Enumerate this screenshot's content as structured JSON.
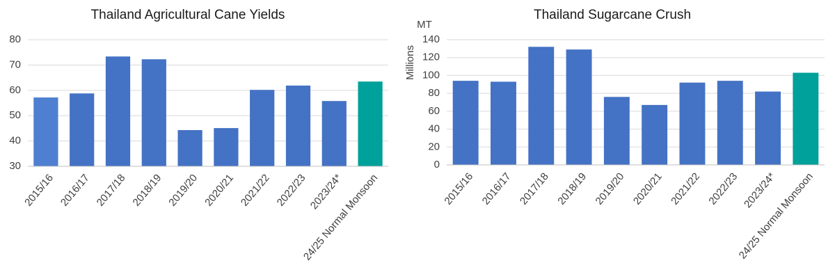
{
  "chart_data": [
    {
      "type": "bar",
      "title": "Thailand Agricultural Cane Yields",
      "categories": [
        "2015/16",
        "2016/17",
        "2017/18",
        "2018/19",
        "2019/20",
        "2020/21",
        "2021/22",
        "2022/23",
        "2023/24*",
        "24/25 Normal Monsoon"
      ],
      "values": [
        57.2,
        58.8,
        73.4,
        72.3,
        44.3,
        45.1,
        60.2,
        61.9,
        55.8,
        63.5
      ],
      "colors": [
        "#4f7fd0",
        "#4472c4",
        "#4472c4",
        "#4472c4",
        "#4472c4",
        "#4472c4",
        "#4472c4",
        "#4472c4",
        "#4472c4",
        "#00a19a"
      ],
      "ylim": [
        30,
        85
      ],
      "yticks": [
        30,
        40,
        50,
        60,
        70,
        80
      ],
      "grid": true
    },
    {
      "type": "bar",
      "title": "Thailand Sugarcane Crush",
      "ylabel": "Millions",
      "yunit": "MT",
      "categories": [
        "2015/16",
        "2016/17",
        "2017/18",
        "2018/19",
        "2019/20",
        "2020/21",
        "2021/22",
        "2022/23",
        "2023/24*",
        "24/25 Normal Monsoon"
      ],
      "values": [
        94,
        93,
        132,
        129,
        76,
        67,
        92,
        94,
        82,
        103
      ],
      "colors": [
        "#4472c4",
        "#4472c4",
        "#4472c4",
        "#4472c4",
        "#4472c4",
        "#4472c4",
        "#4472c4",
        "#4472c4",
        "#4472c4",
        "#00a19a"
      ],
      "ylim": [
        0,
        140
      ],
      "yticks": [
        0,
        20,
        40,
        60,
        80,
        100,
        120,
        140
      ],
      "grid": true
    }
  ]
}
